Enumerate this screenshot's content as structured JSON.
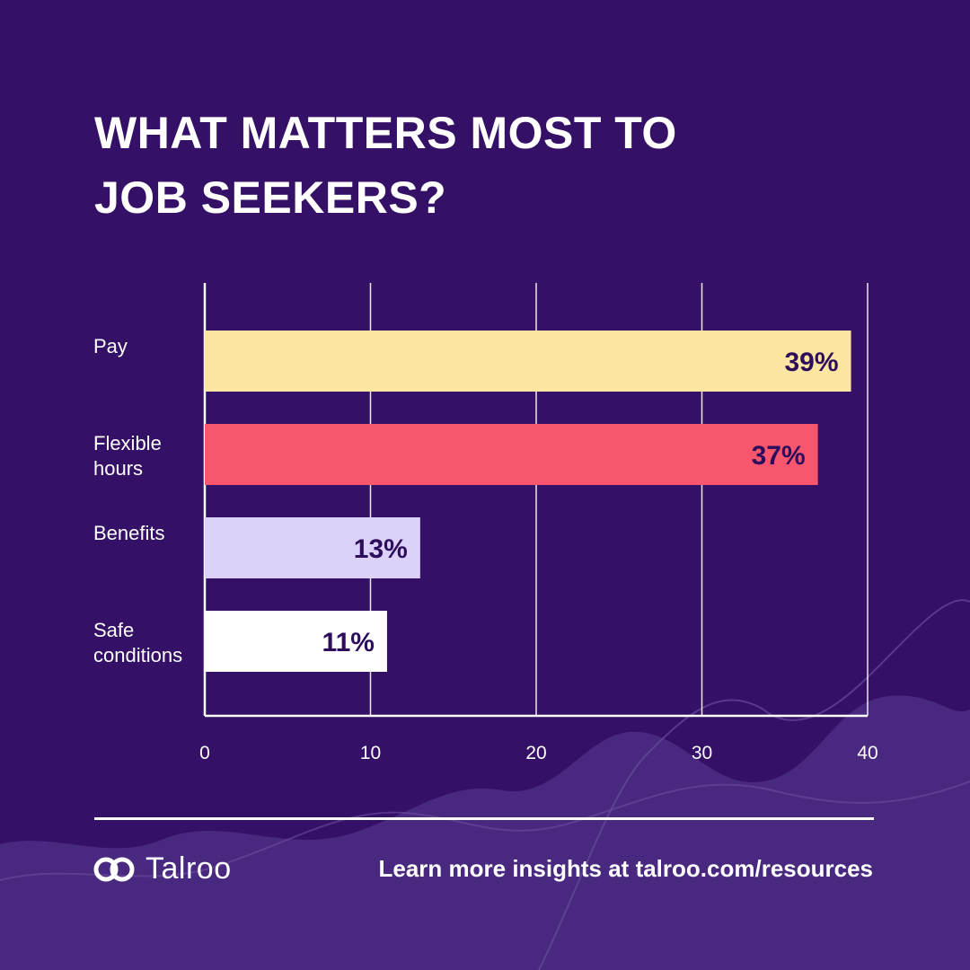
{
  "title_lines": [
    "WHAT MATTERS MOST TO",
    "JOB SEEKERS?"
  ],
  "chart_data": {
    "type": "bar",
    "orientation": "horizontal",
    "categories": [
      [
        "Pay"
      ],
      [
        "Flexible",
        "hours"
      ],
      [
        "Benefits"
      ],
      [
        "Safe",
        "conditions"
      ]
    ],
    "values": [
      39,
      37,
      13,
      11
    ],
    "value_labels": [
      "39%",
      "37%",
      "13%",
      "11%"
    ],
    "bar_colors": [
      "#fde6a2",
      "#f8566d",
      "#dcd2f9",
      "#ffffff"
    ],
    "xlim": [
      0,
      40
    ],
    "xticks": [
      0,
      10,
      20,
      30,
      40
    ],
    "grid": true
  },
  "footer": {
    "logo_text": "Talroo",
    "link_text": "Learn more insights at talroo.com/resources"
  },
  "colors": {
    "background": "#341066",
    "wave": "#4a2a80",
    "value_text": "#2d0d5c"
  }
}
